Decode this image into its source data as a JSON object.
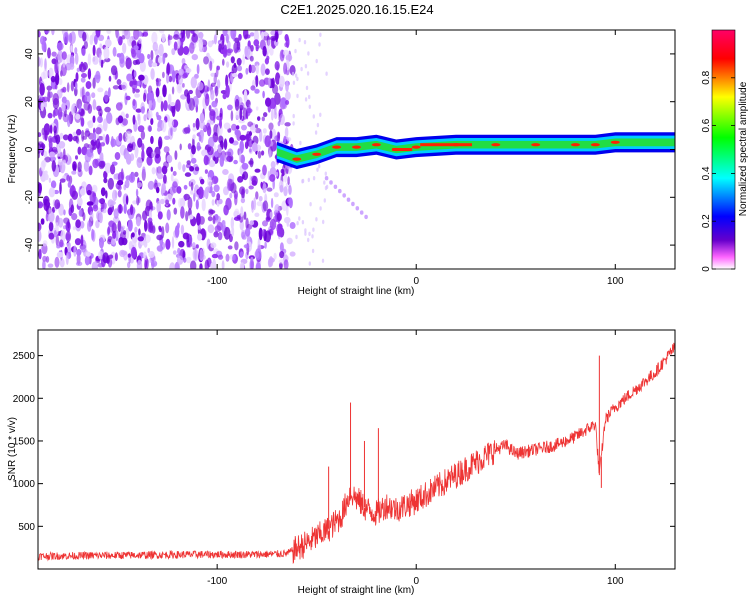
{
  "title": "C2E1.2025.020.16.15.E24",
  "chart_data": [
    {
      "type": "heatmap",
      "xlabel": "Height of straight line (km)",
      "ylabel": "Frequency (Hz)",
      "xlim": [
        -190,
        130
      ],
      "ylim": [
        -50,
        50
      ],
      "x_ticks": [
        -100,
        0,
        100
      ],
      "y_ticks": [
        -40,
        -20,
        0,
        20,
        40
      ],
      "colorbar": {
        "label": "Normalized spectral amplitude",
        "range": [
          0,
          1
        ],
        "ticks": [
          0,
          0.2,
          0.4,
          0.6,
          0.8
        ],
        "colors": [
          "#ffffff",
          "#ff66ff",
          "#6600cc",
          "#0000ff",
          "#00ffff",
          "#00ff00",
          "#ffff00",
          "#ff0000",
          "#ff0066"
        ]
      },
      "regions": [
        {
          "name": "noise",
          "x_range": [
            -190,
            -62
          ],
          "freq_range": [
            -50,
            50
          ],
          "amplitude": 0.1
        },
        {
          "name": "echo",
          "x_range": [
            -70,
            130
          ],
          "freq_start": -5,
          "freq_end": 2,
          "amplitude": 0.9
        }
      ],
      "echo_track": [
        {
          "x": -70,
          "f": -1
        },
        {
          "x": -60,
          "f": -4
        },
        {
          "x": -50,
          "f": -2
        },
        {
          "x": -40,
          "f": 1
        },
        {
          "x": -30,
          "f": 1
        },
        {
          "x": -20,
          "f": 2
        },
        {
          "x": -10,
          "f": 0
        },
        {
          "x": 0,
          "f": 1
        },
        {
          "x": 20,
          "f": 2
        },
        {
          "x": 40,
          "f": 2
        },
        {
          "x": 60,
          "f": 2
        },
        {
          "x": 80,
          "f": 2
        },
        {
          "x": 90,
          "f": 2
        },
        {
          "x": 100,
          "f": 3
        },
        {
          "x": 130,
          "f": 3
        }
      ]
    },
    {
      "type": "line",
      "xlabel": "Height of straight line (km)",
      "ylabel": "SNR (10 * v/v)",
      "xlim": [
        -190,
        130
      ],
      "ylim": [
        0,
        2800
      ],
      "x_ticks": [
        -100,
        0,
        100
      ],
      "y_ticks": [
        500,
        1000,
        1500,
        2000,
        2500
      ],
      "color": "#ee3333",
      "series": [
        {
          "x": [
            -190,
            -150,
            -110,
            -80,
            -65,
            -55,
            -45,
            -38,
            -33,
            -25,
            -20,
            -15,
            -10,
            0,
            10,
            20,
            30,
            40,
            45,
            50,
            60,
            70,
            80,
            90,
            92,
            95,
            100,
            110,
            120,
            130
          ],
          "values": [
            150,
            160,
            170,
            170,
            180,
            300,
            450,
            600,
            900,
            700,
            650,
            750,
            700,
            800,
            950,
            1100,
            1250,
            1400,
            1450,
            1350,
            1400,
            1450,
            1550,
            1700,
            1100,
            1750,
            1900,
            2100,
            2300,
            2600
          ]
        }
      ],
      "spikes": [
        {
          "x": -44,
          "value": 1200
        },
        {
          "x": -33,
          "value": 1950
        },
        {
          "x": -26,
          "value": 1500
        },
        {
          "x": -19,
          "value": 1650
        },
        {
          "x": 92,
          "value": 2500
        },
        {
          "x": 93,
          "value": 950
        }
      ]
    }
  ]
}
